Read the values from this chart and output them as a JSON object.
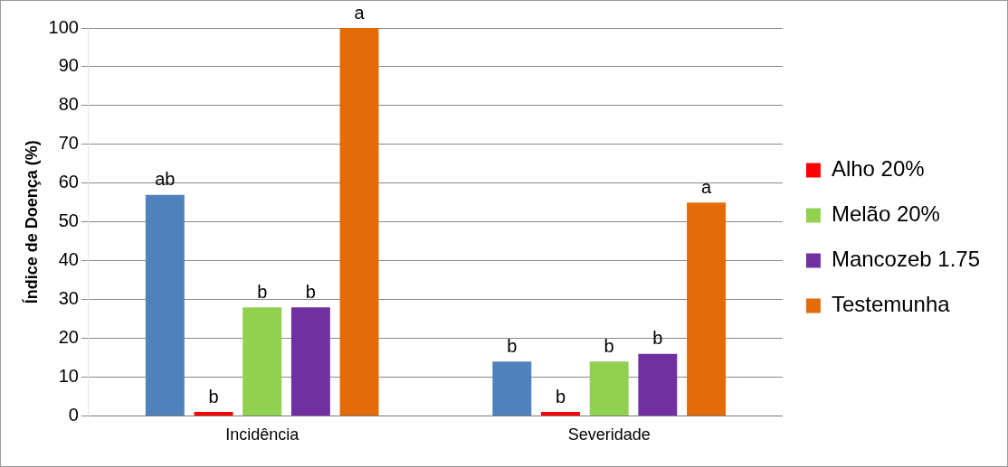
{
  "chart_data": {
    "type": "bar",
    "ylabel": "Índice de Doença (%)",
    "categories": [
      "Incidência",
      "Severidade"
    ],
    "series": [
      {
        "color": "#4f81bd",
        "values": [
          57,
          14
        ],
        "value_labels": [
          "ab",
          "b"
        ]
      },
      {
        "name": "Alho 20%",
        "color": "#ff0000",
        "values": [
          1,
          1
        ],
        "value_labels": [
          "b",
          "b"
        ]
      },
      {
        "name": "Melão 20%",
        "color": "#92d050",
        "values": [
          28,
          14
        ],
        "value_labels": [
          "b",
          "b"
        ]
      },
      {
        "name": "Mancozeb 1.75",
        "color": "#7030a0",
        "values": [
          28,
          16
        ],
        "value_labels": [
          "b",
          "b"
        ]
      },
      {
        "name": "Testemunha",
        "color": "#e36c09",
        "values": [
          100,
          55
        ],
        "value_labels": [
          "a",
          "a"
        ]
      }
    ],
    "ylim": [
      0,
      100
    ],
    "yticks": [
      0,
      10,
      20,
      30,
      40,
      50,
      60,
      70,
      80,
      90,
      100
    ],
    "grid": "y",
    "legend": "right"
  }
}
